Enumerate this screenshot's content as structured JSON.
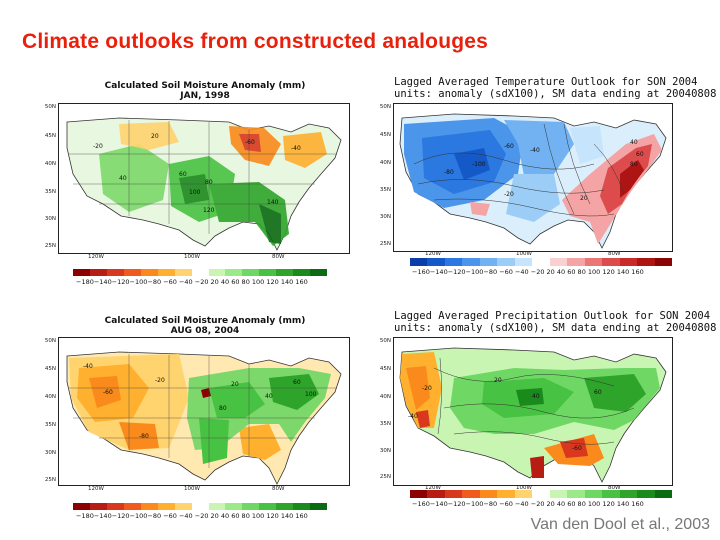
{
  "slide": {
    "title": "Climate outlooks from constructed analouges",
    "credit": "Van den Dool et al., 2003"
  },
  "palettes": {
    "dry": [
      "#8b0000",
      "#b81d13",
      "#d9381e",
      "#ef5a1f",
      "#f98a1b",
      "#ffb02e",
      "#ffd36e"
    ],
    "wet": [
      "#c9f5b2",
      "#9ce98a",
      "#6fd865",
      "#48c242",
      "#2ea42a",
      "#1b8a1d",
      "#0b6b12"
    ],
    "cold": [
      "#0b3ea8",
      "#1559c8",
      "#2a78e0",
      "#4b95ea",
      "#72b2f2",
      "#9ccdf7",
      "#c6e4fb"
    ],
    "warm": [
      "#fbd0d0",
      "#f4a4a4",
      "#ea7676",
      "#dc4c4c",
      "#c92a2a",
      "#ad1515",
      "#8a0606"
    ]
  },
  "panels": {
    "soil_jan": {
      "title_line1": "Calculated Soil Moisture Anomaly (mm)",
      "title_line2": "JAN, 1998",
      "colorbar_ticks": "−180−140−120−100−80 −60 −40 −20 20  40  60  80  100 120 140 160",
      "y_labels": [
        "50N",
        "45N",
        "40N",
        "35N",
        "30N",
        "25N"
      ],
      "x_labels": [
        "120W",
        "100W",
        "80W"
      ],
      "map_labels": [
        "-20",
        "-40",
        "60",
        "80",
        "100",
        "120",
        "140",
        "-60",
        "20",
        "40"
      ]
    },
    "temp_son": {
      "title_line1": "Lagged Averaged Temperature Outlook for SON 2004",
      "title_line2": "units: anomaly (sdX100), SM data ending at 20040808",
      "colorbar_ticks": "−160−140−120−100−80 −60 −40 −20  20  40  60  80  100 120 140 160",
      "y_labels": [
        "50N",
        "45N",
        "40N",
        "35N",
        "30N",
        "25N"
      ],
      "x_labels": [
        "120W",
        "100W",
        "80W"
      ],
      "map_labels": [
        "-60",
        "-40",
        "-80",
        "-100",
        "-20",
        "20",
        "40",
        "60",
        "80"
      ]
    },
    "soil_aug": {
      "title_line1": "Calculated Soil Moisture Anomaly (mm)",
      "title_line2": "AUG 08, 2004",
      "colorbar_ticks": "−180−140−120−100−80 −60 −40 −20 20  40  60  80  100 120 140 160",
      "y_labels": [
        "50N",
        "45N",
        "40N",
        "35N",
        "30N",
        "25N"
      ],
      "x_labels": [
        "120W",
        "100W",
        "80W"
      ],
      "map_labels": [
        "-40",
        "-60",
        "-20",
        "20",
        "40",
        "60",
        "80",
        "-80",
        "100"
      ]
    },
    "precip_son": {
      "title_line1": "Lagged Averaged Precipitation Outlook for SON 2004",
      "title_line2": "units: anomaly (sdX100), SM data ending at 20040808",
      "colorbar_ticks": "−160−140−120−100−80 −60 −40 −20  20  40  60  80  100 120 140 160",
      "y_labels": [
        "50N",
        "45N",
        "40N",
        "35N",
        "30N",
        "25N"
      ],
      "x_labels": [
        "120W",
        "100W",
        "80W"
      ],
      "map_labels": [
        "-20",
        "20",
        "40",
        "-40",
        "60",
        "-60"
      ]
    }
  }
}
